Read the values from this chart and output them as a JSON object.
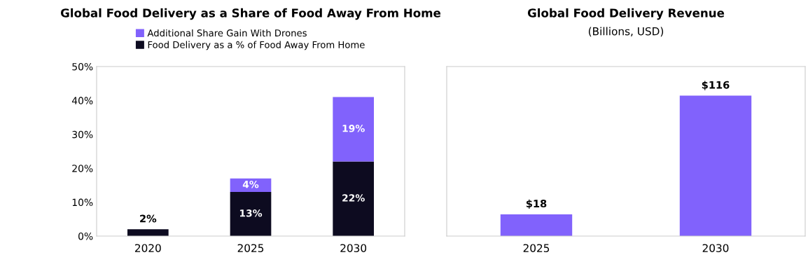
{
  "chart_data": [
    {
      "type": "bar",
      "title": "Global Food Delivery as a Share of Food Away From Home",
      "categories": [
        "2020",
        "2025",
        "2030"
      ],
      "stacked": true,
      "series": [
        {
          "name": "Food Delivery as a % of Food Away From Home",
          "color": "#0d0b20",
          "values": [
            2,
            13,
            22
          ],
          "value_labels": [
            "2%",
            "13%",
            "22%"
          ]
        },
        {
          "name": "Additional Share Gain With Drones",
          "color": "#8162fc",
          "values": [
            null,
            4,
            19
          ],
          "value_labels": [
            null,
            "4%",
            "19%"
          ]
        }
      ],
      "ylim": [
        0,
        50
      ],
      "yticks": [
        {
          "value": 0,
          "label": "0%"
        },
        {
          "value": 10,
          "label": "10%"
        },
        {
          "value": 20,
          "label": "20%"
        },
        {
          "value": 30,
          "label": "30%"
        },
        {
          "value": 40,
          "label": "40%"
        },
        {
          "value": 50,
          "label": "50%"
        }
      ],
      "grid": false,
      "legend": "top"
    },
    {
      "type": "bar",
      "title": "Global Food Delivery Revenue",
      "subtitle": "(Billions, USD)",
      "categories": [
        "2025",
        "2030"
      ],
      "series": [
        {
          "color": "#8162fc",
          "values": [
            18,
            116
          ],
          "value_labels": [
            "$18",
            "$116"
          ]
        }
      ],
      "ylim": [
        0,
        140
      ],
      "tick_labels": "x",
      "grid": false
    }
  ]
}
